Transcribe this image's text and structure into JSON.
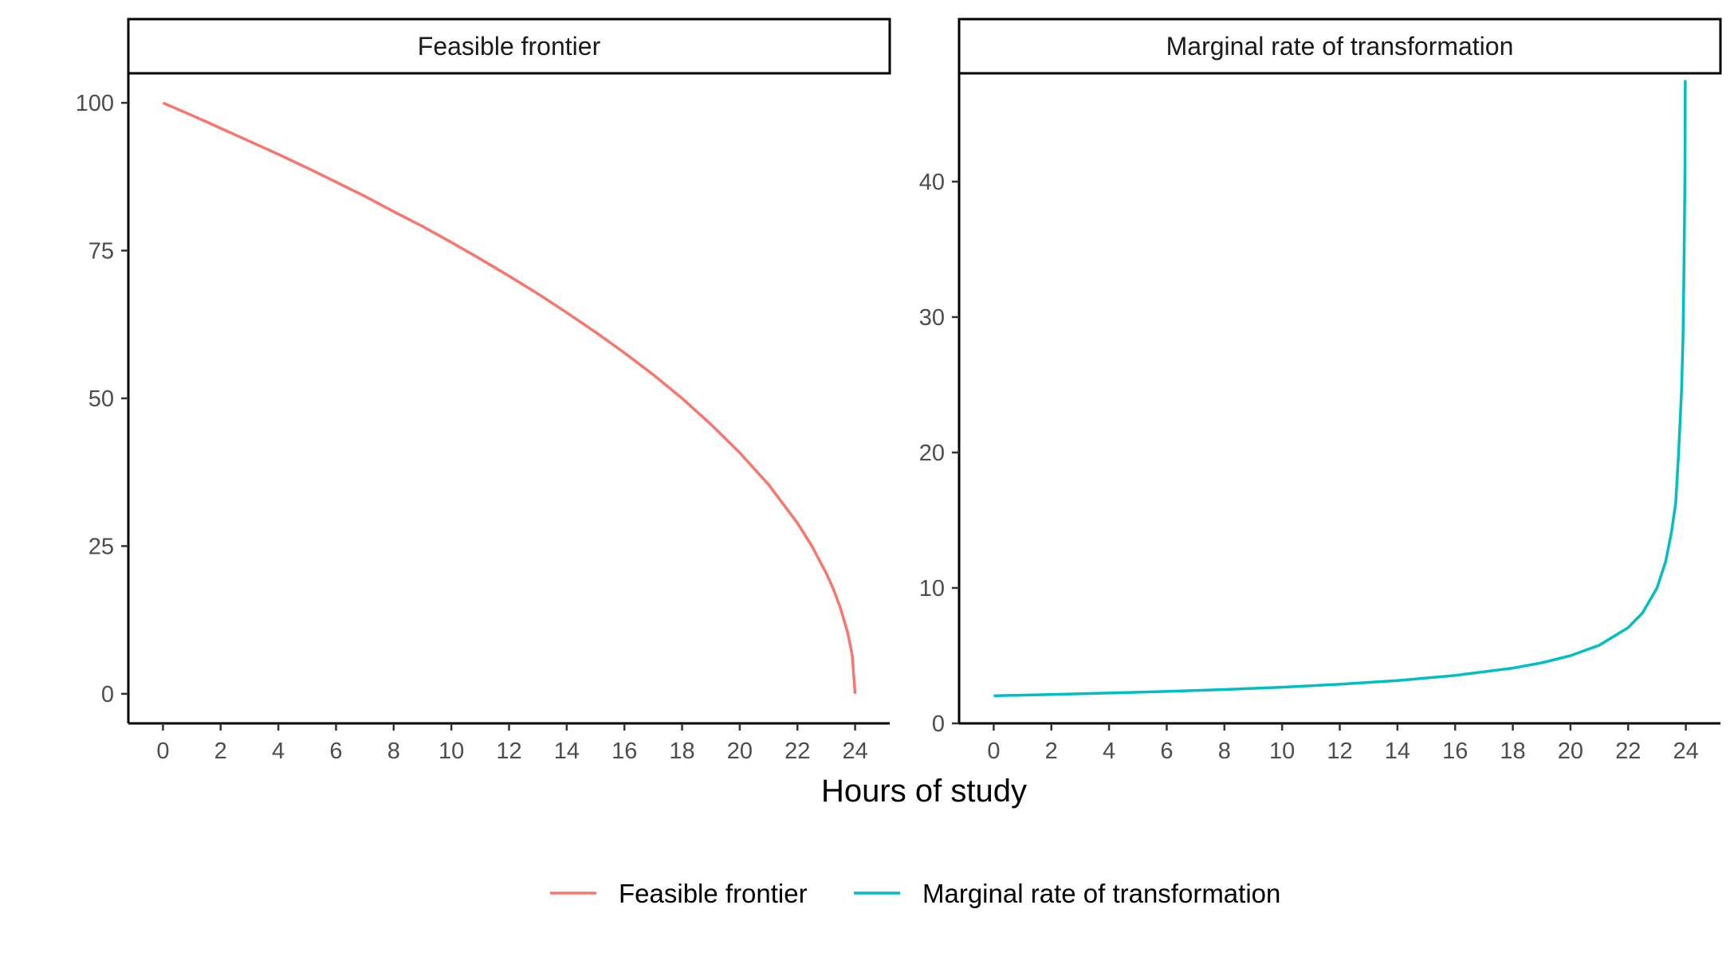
{
  "chart_data": [
    {
      "type": "line",
      "panel_title": "Feasible frontier",
      "xlabel": "Hours of study",
      "ylabel": "",
      "xlim": [
        -1.2,
        25.2
      ],
      "ylim": [
        -5,
        105
      ],
      "x_ticks": [
        0,
        2,
        4,
        6,
        8,
        10,
        12,
        14,
        16,
        18,
        20,
        22,
        24
      ],
      "y_ticks": [
        0,
        25,
        50,
        75,
        100
      ],
      "series": [
        {
          "name": "Feasible frontier",
          "color": "#F8766D",
          "x": [
            0,
            1,
            2,
            3,
            4,
            5,
            6,
            7,
            8,
            9,
            10,
            11,
            12,
            13,
            14,
            15,
            16,
            17,
            18,
            19,
            20,
            21,
            22,
            22.5,
            23,
            23.25,
            23.5,
            23.75,
            23.9,
            24
          ],
          "y": [
            100,
            97.9,
            95.7,
            93.5,
            91.3,
            89.0,
            86.6,
            84.2,
            81.6,
            79.1,
            76.4,
            73.6,
            70.7,
            67.7,
            64.5,
            61.2,
            57.7,
            54.0,
            50.0,
            45.6,
            40.8,
            35.4,
            28.9,
            25.0,
            20.4,
            17.7,
            14.4,
            10.2,
            6.5,
            0
          ]
        }
      ]
    },
    {
      "type": "line",
      "panel_title": "Marginal rate of transformation",
      "xlabel": "Hours of study",
      "ylabel": "",
      "xlim": [
        -1.2,
        25.2
      ],
      "ylim": [
        0,
        48
      ],
      "x_ticks": [
        0,
        2,
        4,
        6,
        8,
        10,
        12,
        14,
        16,
        18,
        20,
        22,
        24
      ],
      "y_ticks": [
        0,
        10,
        20,
        30,
        40
      ],
      "series": [
        {
          "name": "Marginal rate of transformation",
          "color": "#00BFC4",
          "x": [
            0,
            2,
            4,
            6,
            8,
            10,
            12,
            14,
            16,
            18,
            19,
            20,
            21,
            22,
            22.5,
            23,
            23.3,
            23.5,
            23.65,
            23.75,
            23.85,
            23.9,
            23.93,
            23.95,
            23.97,
            23.98
          ],
          "y": [
            2.04,
            2.13,
            2.24,
            2.36,
            2.5,
            2.67,
            2.89,
            3.16,
            3.54,
            4.08,
            4.47,
            5.0,
            5.77,
            7.07,
            8.16,
            10.0,
            11.95,
            14.1,
            16.3,
            20.0,
            24.5,
            28.3,
            32.7,
            36.5,
            41.0,
            47.5
          ]
        }
      ]
    }
  ],
  "legend": {
    "position": "bottom",
    "items": [
      {
        "label": "Feasible frontier",
        "color": "#F8766D"
      },
      {
        "label": "Marginal rate of transformation",
        "color": "#00BFC4"
      }
    ]
  },
  "shared_xlabel": "Hours of study"
}
